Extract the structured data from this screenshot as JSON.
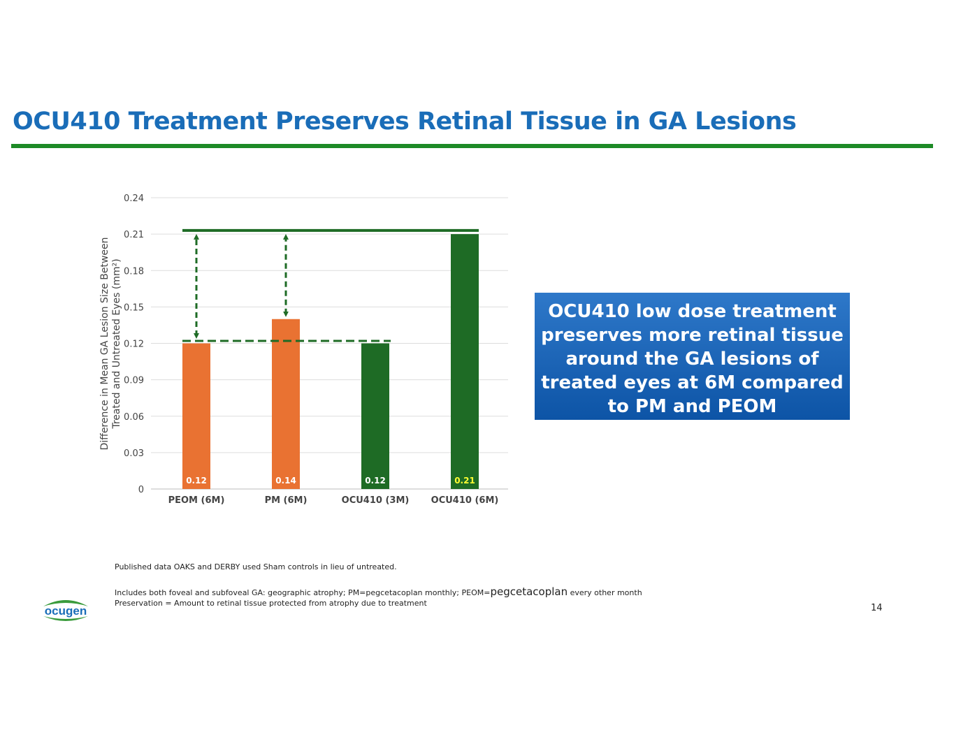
{
  "slide": {
    "title": "OCU410 Treatment Preserves Retinal Tissue in GA Lesions",
    "page_number": "14"
  },
  "colors": {
    "title": "#1a6db8",
    "rule": "#1d8a26",
    "orange": "#e97232",
    "green": "#1e6b25",
    "callout_bg": "#0d54a6",
    "highlight_label": "#ffff33"
  },
  "callout": {
    "text": "OCU410 low dose treatment preserves more retinal tissue around the GA lesions of treated eyes at 6M compared to PM and PEOM"
  },
  "footnotes": {
    "line1": "Published data  OAKS and DERBY used Sham controls in lieu of untreated.",
    "line2_before": "Includes both foveal and subfoveal GA: geographic atrophy; PM=pegcetacoplan monthly; PEOM=",
    "line2_big": "pegcetacoplan",
    "line2_after": " every other month",
    "line3": "Preservation = Amount to retinal tissue protected from atrophy due to treatment"
  },
  "logo": {
    "text": "ocugen",
    "icon": "ocugen-logo-icon"
  },
  "chart_data": {
    "type": "bar",
    "title": "",
    "categories": [
      "PEOM (6M)",
      "PM (6M)",
      "OCU410 (3M)",
      "OCU410 (6M)"
    ],
    "values": [
      0.12,
      0.14,
      0.12,
      0.21
    ],
    "value_labels": [
      "0.12",
      "0.14",
      "0.12",
      "0.21"
    ],
    "bar_colors": [
      "#e97232",
      "#e97232",
      "#1e6b25",
      "#1e6b25"
    ],
    "label_colors": [
      "#ffffff",
      "#ffffff",
      "#ffffff",
      "#ffff33"
    ],
    "ylabel_line1": "Difference in Mean GA Lesion Size Between",
    "ylabel_line2": "Treated and Untreated Eyes (mm²)",
    "xlabel": "",
    "ylim": [
      0,
      0.24
    ],
    "yticks": [
      0,
      0.03,
      0.06,
      0.09,
      0.12,
      0.15,
      0.18,
      0.21,
      0.24
    ],
    "ytick_labels": [
      "0",
      "0.03",
      "0.06",
      "0.09",
      "0.12",
      "0.15",
      "0.18",
      "0.21",
      "0.24"
    ],
    "grid": true,
    "reference_lines": [
      {
        "value": 0.213,
        "style": "solid",
        "from_category": 0,
        "to_category": 3
      },
      {
        "value": 0.122,
        "style": "dashed",
        "from_category": 0,
        "to_category": 2
      }
    ],
    "arrows": [
      {
        "category": 0,
        "from": 0.122,
        "to": 0.213
      },
      {
        "category": 1,
        "from": 0.14,
        "to": 0.213
      }
    ]
  }
}
